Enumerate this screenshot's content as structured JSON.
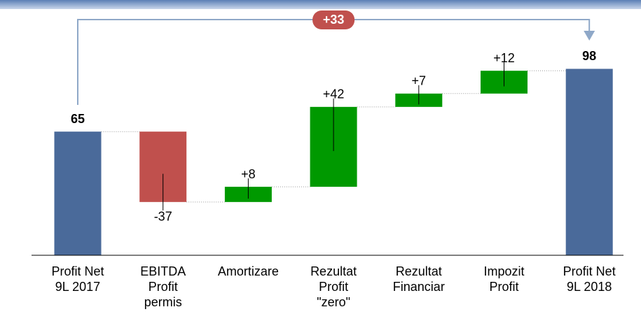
{
  "chart_data": {
    "type": "waterfall",
    "categories": [
      [
        "Profit Net",
        "9L 2017"
      ],
      [
        "EBITDA",
        "Profit",
        "permis"
      ],
      [
        "Amortizare"
      ],
      [
        "Rezultat",
        "Profit",
        "\"zero\""
      ],
      [
        "Rezultat",
        "Financiar"
      ],
      [
        "Impozit",
        "Profit"
      ],
      [
        "Profit Net",
        "9L 2018"
      ]
    ],
    "values": [
      65,
      -37,
      8,
      42,
      7,
      12,
      98
    ],
    "value_labels": [
      "65",
      "-37",
      "+8",
      "+42",
      "+7",
      "+12",
      "98"
    ],
    "totals": [
      0,
      6
    ],
    "colors": {
      "total": "#4a6a9a",
      "increase": "#009900",
      "decrease": "#c0504d"
    },
    "ylim": [
      0,
      100
    ],
    "annotation": {
      "value": 33,
      "label": "+33",
      "color": "#c0504d"
    }
  }
}
